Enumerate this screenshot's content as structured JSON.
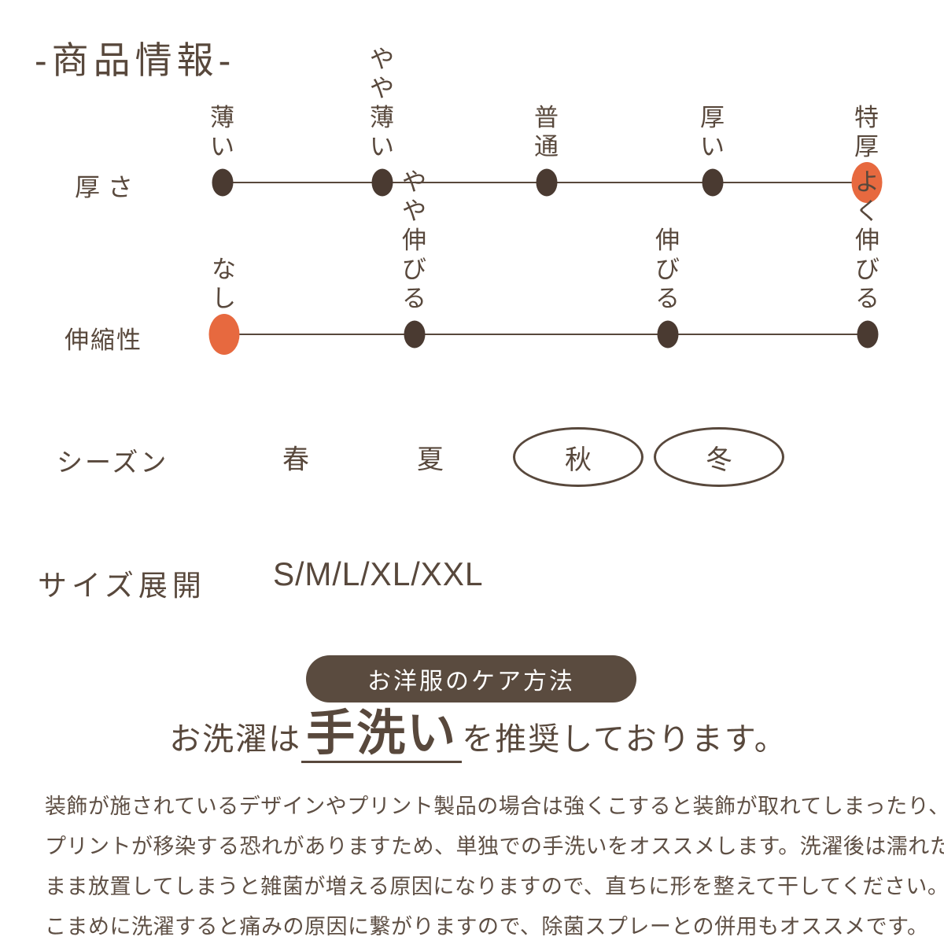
{
  "title": "-商品情報-",
  "colors": {
    "brown": "#58483C",
    "dot": "#4A3A31",
    "accent": "#E7693F",
    "pill_bg": "#5A4B3F",
    "pill_text": "#FFFFFF"
  },
  "thickness": {
    "label": "厚さ",
    "options": [
      "薄い",
      "やや薄い",
      "普通",
      "厚い",
      "特厚"
    ],
    "selected": "特厚"
  },
  "stretch": {
    "label": "伸縮性",
    "options": [
      "なし",
      "やや\n伸びる",
      "伸びる",
      "よく\n伸びる"
    ],
    "selected": "なし"
  },
  "season": {
    "label": "シーズン",
    "options": [
      {
        "label": "春",
        "circled": false
      },
      {
        "label": "夏",
        "circled": false
      },
      {
        "label": "秋",
        "circled": true
      },
      {
        "label": "冬",
        "circled": true
      }
    ]
  },
  "size": {
    "label": "サイズ展開",
    "value": "S/M/L/XL/XXL"
  },
  "care": {
    "button_label": "お洋服のケア方法",
    "headline": {
      "prefix": "お洗濯は",
      "highlight": "手洗い",
      "suffix": "を推奨しております。"
    },
    "body_lines": [
      "装飾が施されているデザインやプリント製品の場合は強くこすると装飾が取れてしまったり、",
      "プリントが移染する恐れがありますため、単独での手洗いをオススメします。洗濯後は濡れた",
      "まま放置してしまうと雑菌が増える原因になりますので、直ちに形を整えて干してください。",
      "こまめに洗濯すると痛みの原因に繋がりますので、除菌スプレーとの併用もオススメです。"
    ]
  }
}
